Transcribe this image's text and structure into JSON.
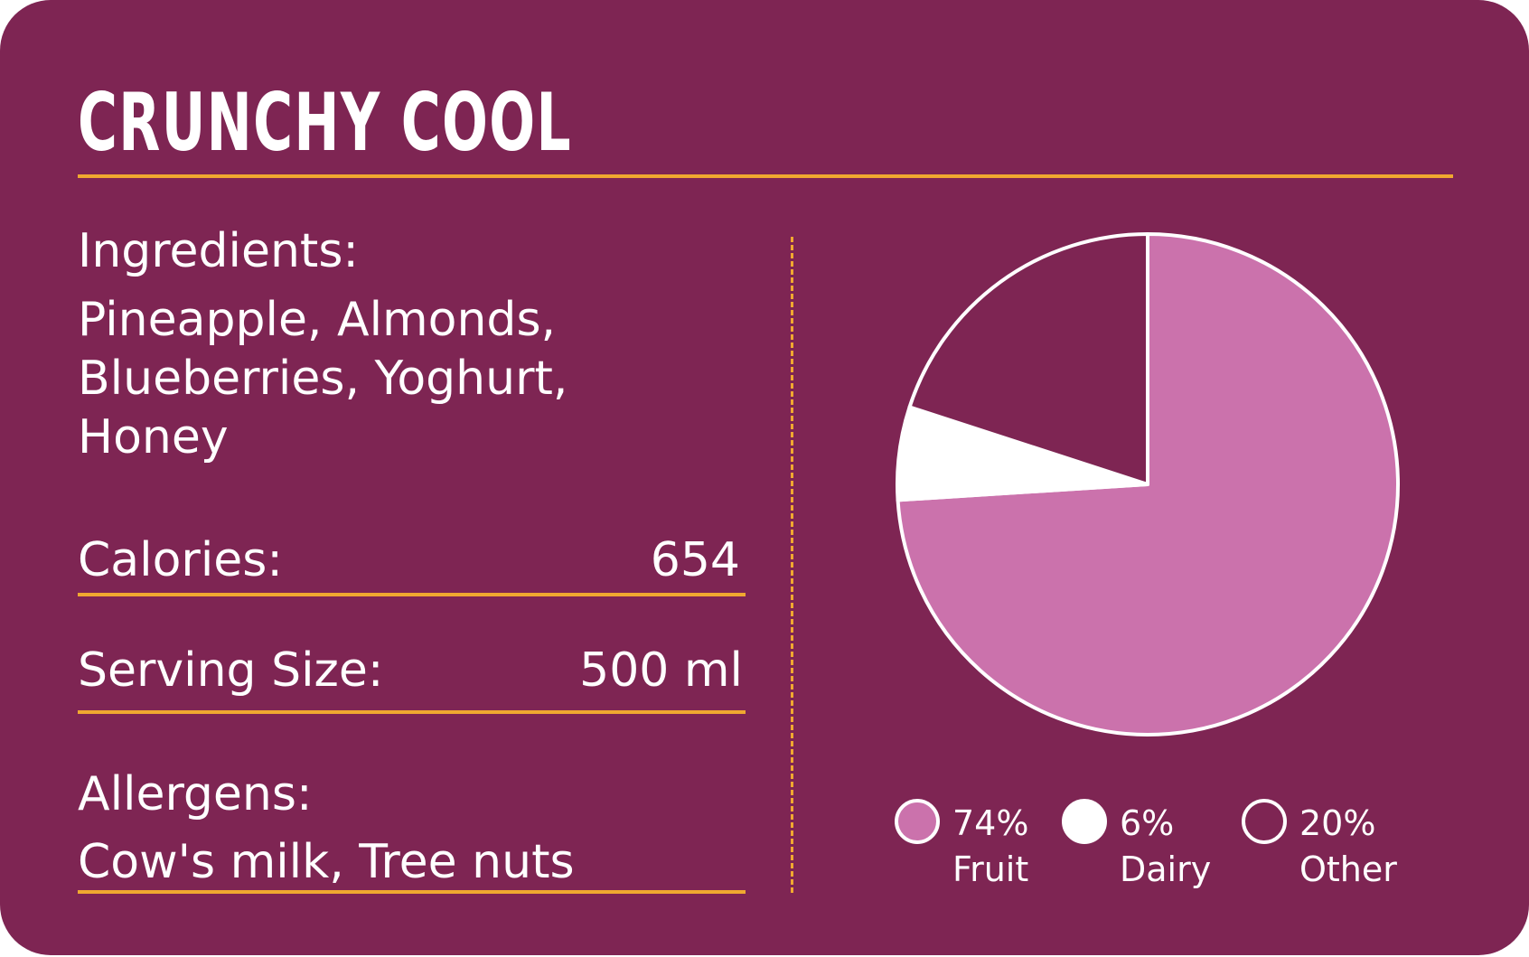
{
  "title": "CRUNCHY COOL",
  "ingredients": {
    "label": "Ingredients:",
    "lines": [
      "Pineapple, Almonds,",
      "Blueberries, Yoghurt,",
      "Honey"
    ]
  },
  "calories": {
    "label": "Calories:",
    "value": "654"
  },
  "serving_size": {
    "label": "Serving Size:",
    "value": "500 ml"
  },
  "allergens": {
    "label": "Allergens:",
    "value": "Cow's milk, Tree nuts"
  },
  "colors": {
    "background": "#7E2553",
    "accent": "#F0A830",
    "fruit": "#CB72AC",
    "dairy": "#FFFFFF",
    "other": "#7E2553"
  },
  "chart_data": {
    "type": "pie",
    "slices": [
      {
        "name": "Fruit",
        "value": 74,
        "label": "74%",
        "color": "#CB72AC"
      },
      {
        "name": "Dairy",
        "value": 6,
        "label": "6%",
        "color": "#FFFFFF"
      },
      {
        "name": "Other",
        "value": 20,
        "label": "20%",
        "color": "#7E2553"
      }
    ],
    "start": "top",
    "direction": "clockwise",
    "legend": "bottom"
  }
}
